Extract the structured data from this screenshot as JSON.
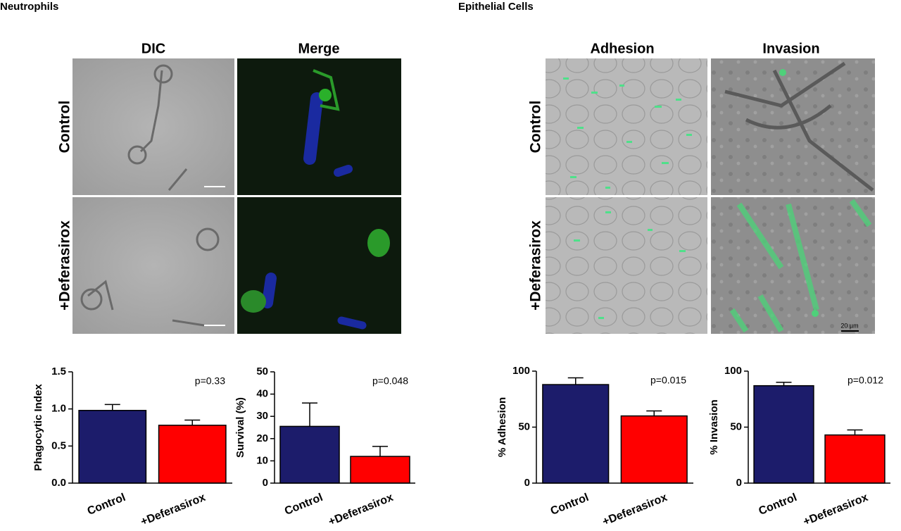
{
  "panels": {
    "neutrophils": {
      "title": "Neutrophils",
      "columns": [
        "DIC",
        "Merge"
      ],
      "rows": [
        "Control",
        "+Deferasirox"
      ]
    },
    "epithelial": {
      "title": "Epithelial Cells",
      "columns": [
        "Adhesion",
        "Invasion"
      ],
      "rows": [
        "Control",
        "+Deferasirox"
      ],
      "scale_bar": "20 µm"
    }
  },
  "chart_data": [
    {
      "type": "bar",
      "y_label": "Phagocytic Index",
      "categories": [
        "Control",
        "+Deferasirox"
      ],
      "values": [
        0.98,
        0.78
      ],
      "errors": [
        0.08,
        0.07
      ],
      "colors": [
        "#1c1c6b",
        "#ff0000"
      ],
      "ylim": [
        0,
        1.5
      ],
      "yticks": [
        {
          "value": 0,
          "label": "0.0"
        },
        0.5,
        {
          "value": 1,
          "label": "1.0"
        },
        1.5
      ],
      "annotation": "p=0.33"
    },
    {
      "type": "bar",
      "y_label": "Survival (%)",
      "categories": [
        "Control",
        "+Deferasirox"
      ],
      "values": [
        25.5,
        12
      ],
      "errors": [
        10.5,
        4.5
      ],
      "colors": [
        "#1c1c6b",
        "#ff0000"
      ],
      "ylim": [
        0,
        50
      ],
      "yticks": [
        0,
        10,
        20,
        30,
        40,
        50
      ],
      "annotation": "p=0.048"
    },
    {
      "type": "bar",
      "y_label": "% Adhesion",
      "categories": [
        "Control",
        "+Deferasirox"
      ],
      "values": [
        88,
        60
      ],
      "errors": [
        6,
        4.5
      ],
      "colors": [
        "#1c1c6b",
        "#ff0000"
      ],
      "ylim": [
        0,
        100
      ],
      "yticks": [
        0,
        50,
        100
      ],
      "annotation": "p=0.015"
    },
    {
      "type": "bar",
      "y_label": "% Invasion",
      "categories": [
        "Control",
        "+Deferasirox"
      ],
      "values": [
        87,
        43
      ],
      "errors": [
        3,
        4.5
      ],
      "colors": [
        "#1c1c6b",
        "#ff0000"
      ],
      "ylim": [
        0,
        100
      ],
      "yticks": [
        0,
        50,
        100
      ],
      "annotation": "p=0.012"
    }
  ]
}
